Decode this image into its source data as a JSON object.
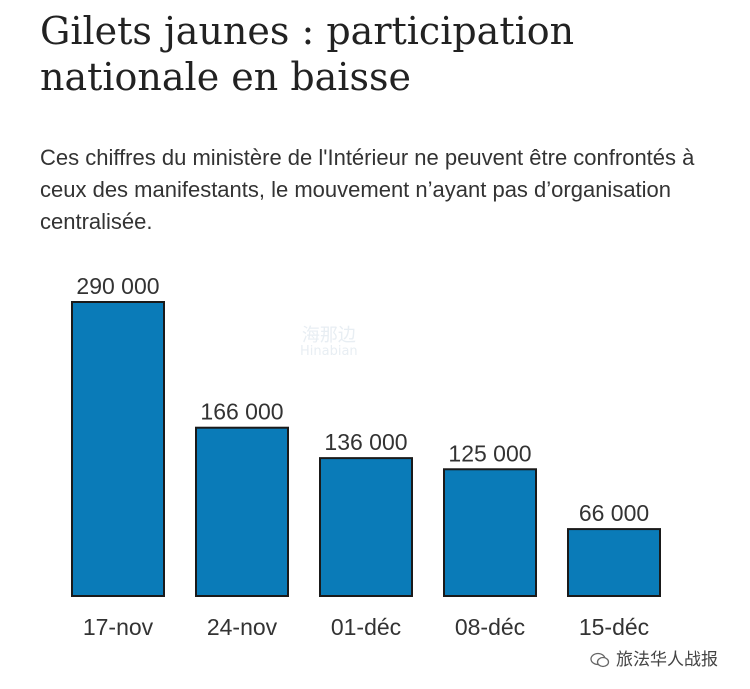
{
  "header": {
    "title": "Gilets jaunes : participation nationale en baisse",
    "subtitle": "Ces chiffres du ministère de l'Intérieur ne peuvent être confrontés à ceux des manifestants, le mouvement n’ayant pas d’organisation centralisée."
  },
  "watermark": {
    "line1": "海那边",
    "line2": "Hinabian"
  },
  "footer": {
    "credit": "旅法华人战报",
    "icon": "wechat-icon"
  },
  "colors": {
    "bar": "#0a7bb8",
    "bar_edge": "#1a1a1a",
    "text": "#333333"
  },
  "chart_data": {
    "type": "bar",
    "categories": [
      "17-nov",
      "24-nov",
      "01-déc",
      "08-déc",
      "15-déc"
    ],
    "values": [
      290000,
      166000,
      136000,
      125000,
      66000
    ],
    "value_labels": [
      "290 000",
      "166 000",
      "136 000",
      "125 000",
      "66 000"
    ],
    "title": "Gilets jaunes : participation nationale en baisse",
    "xlabel": "",
    "ylabel": "",
    "ylim": [
      0,
      290000
    ],
    "grid": false,
    "legend": "none"
  }
}
